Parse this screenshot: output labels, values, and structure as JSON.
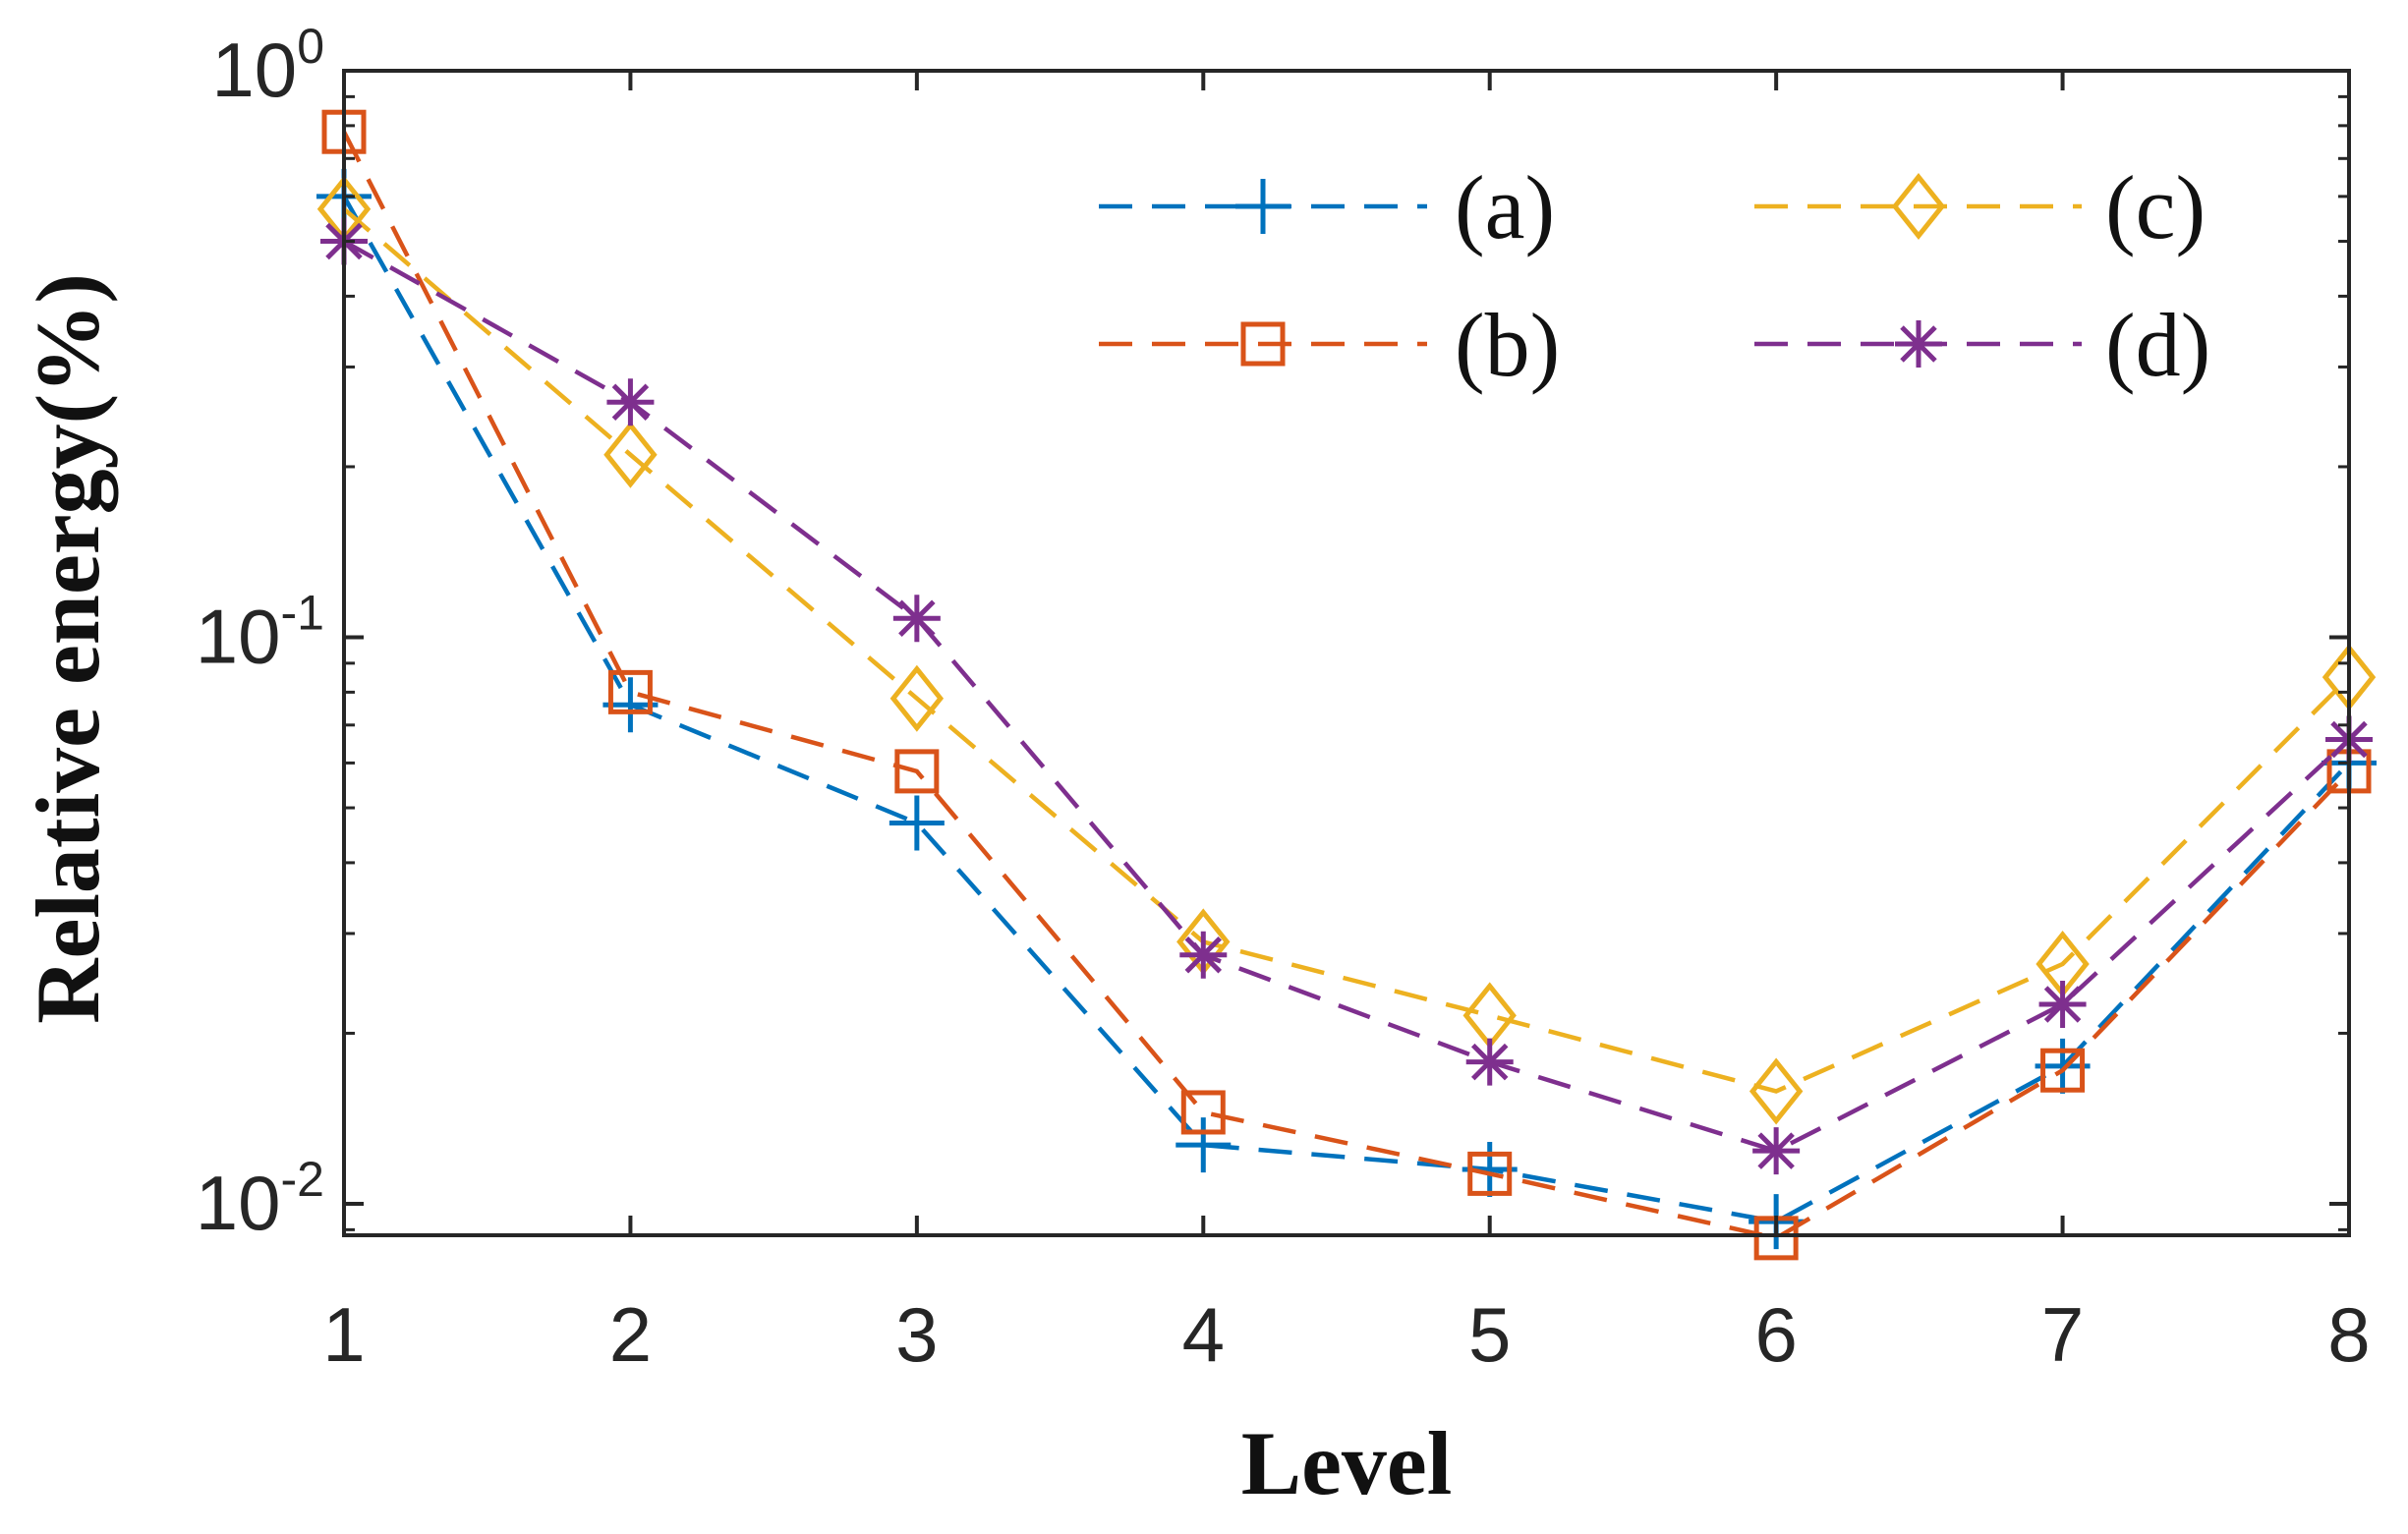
{
  "chart_data": {
    "type": "line",
    "title": "",
    "xlabel": "Level",
    "ylabel": "Relative energy(%)",
    "yscale": "log",
    "x": [
      1,
      2,
      3,
      4,
      5,
      6,
      7,
      8
    ],
    "xlim": [
      1,
      8
    ],
    "ylim": [
      0.0088,
      1
    ],
    "xticks": [
      {
        "value": 1,
        "label": "1"
      },
      {
        "value": 2,
        "label": "2"
      },
      {
        "value": 3,
        "label": "3"
      },
      {
        "value": 4,
        "label": "4"
      },
      {
        "value": 5,
        "label": "5"
      },
      {
        "value": 6,
        "label": "6"
      },
      {
        "value": 7,
        "label": "7"
      },
      {
        "value": 8,
        "label": "8"
      }
    ],
    "yticks": [
      {
        "value": 1,
        "base": "10",
        "exp": "0"
      },
      {
        "value": 0.1,
        "base": "10",
        "exp": "-1"
      },
      {
        "value": 0.01,
        "base": "10",
        "exp": "-2"
      }
    ],
    "grid": false,
    "legend_position": "top-right",
    "series": [
      {
        "name": "(a)",
        "color": "#0072BD",
        "marker": "plus",
        "line": "dashed",
        "values": [
          0.6,
          0.076,
          0.047,
          0.0127,
          0.0115,
          0.0093,
          0.0175,
          0.06
        ]
      },
      {
        "name": "(b)",
        "color": "#D95319",
        "marker": "square",
        "line": "dashed",
        "values": [
          0.78,
          0.08,
          0.058,
          0.0145,
          0.0113,
          0.0087,
          0.0172,
          0.058
        ]
      },
      {
        "name": "(c)",
        "color": "#EDB120",
        "marker": "diamond",
        "line": "dashed",
        "values": [
          0.57,
          0.21,
          0.078,
          0.029,
          0.0215,
          0.0158,
          0.0265,
          0.085
        ]
      },
      {
        "name": "(d)",
        "color": "#7E2F8E",
        "marker": "asterisk",
        "line": "dashed",
        "values": [
          0.5,
          0.26,
          0.108,
          0.0275,
          0.0178,
          0.0124,
          0.0225,
          0.066
        ]
      }
    ]
  }
}
